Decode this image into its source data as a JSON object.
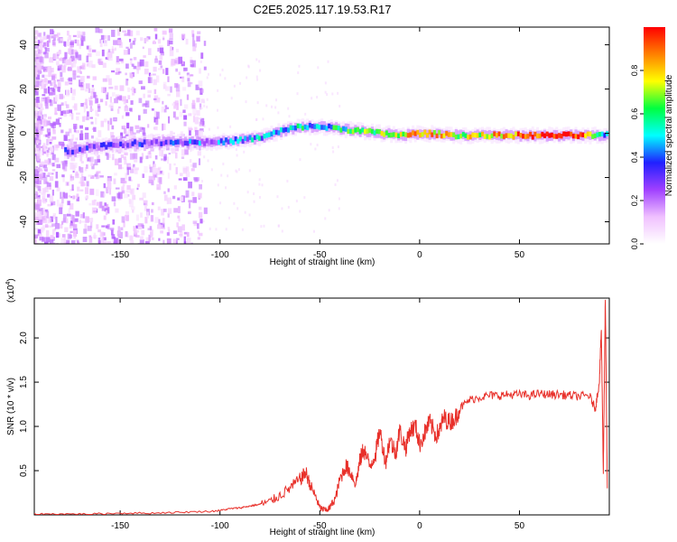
{
  "figure": {
    "title": "C2E5.2025.117.19.53.R17"
  },
  "chart_data": [
    {
      "type": "heatmap",
      "xlabel": "Height of straight line (km)",
      "ylabel": "Frequency (Hz)",
      "xlim": [
        -193,
        95
      ],
      "ylim": [
        -50,
        48
      ],
      "xticks": [
        "-150",
        "-100",
        "-50",
        "0",
        "50"
      ],
      "xtick_values": [
        -150,
        -100,
        -50,
        0,
        50
      ],
      "yticks": [
        "-40",
        "-20",
        "0",
        "20",
        "40"
      ],
      "ytick_values": [
        -40,
        -20,
        0,
        20,
        40
      ],
      "grid": false,
      "ridge": {
        "x": [
          -175,
          -165,
          -150,
          -130,
          -115,
          -100,
          -90,
          -80,
          -70,
          -60,
          -50,
          -40,
          -30,
          -20,
          -10,
          0,
          20,
          50,
          80,
          93
        ],
        "frequency": [
          -8,
          -6,
          -5,
          -4,
          -4,
          -4,
          -3,
          -2,
          1,
          3,
          3,
          2,
          1,
          0,
          -1,
          0,
          -1,
          -1,
          -1,
          -1
        ],
        "normalized_amplitude": [
          0.25,
          0.3,
          0.25,
          0.3,
          0.35,
          0.35,
          0.4,
          0.45,
          0.45,
          0.5,
          0.45,
          0.55,
          0.6,
          0.7,
          0.75,
          0.85,
          0.7,
          0.9,
          1.0,
          0.4
        ]
      },
      "colorbar": {
        "label": "Normalized spectral amplitude",
        "range": [
          0,
          1
        ],
        "ticks": [
          "0.0",
          "0.2",
          "0.4",
          "0.6",
          "0.8"
        ],
        "tick_values": [
          0,
          0.2,
          0.4,
          0.6,
          0.8
        ],
        "colormap": [
          "#ffffff",
          "#f0c0ff",
          "#a040ff",
          "#2020ff",
          "#00ffff",
          "#00ff40",
          "#ffff00",
          "#ff8000",
          "#ff0000"
        ]
      }
    },
    {
      "type": "line",
      "xlabel": "Height of straight line (km)",
      "ylabel": "SNR (10 * v/v)",
      "y_multiplier": "(x10",
      "y_multiplier_exp": "4",
      "y_multiplier_close": ")",
      "xlim": [
        -193,
        95
      ],
      "ylim": [
        0,
        2.45
      ],
      "xticks": [
        "-150",
        "-100",
        "-50",
        "0",
        "50"
      ],
      "xtick_values": [
        -150,
        -100,
        -50,
        0,
        50
      ],
      "yticks": [
        "0.5",
        "1.0",
        "1.5",
        "2.0"
      ],
      "ytick_values": [
        0.5,
        1.0,
        1.5,
        2.0
      ],
      "color": "#e8302a",
      "grid": false,
      "series": [
        {
          "x": [
            -193,
            -180,
            -165,
            -150,
            -135,
            -120,
            -105,
            -100,
            -95,
            -90,
            -85,
            -80,
            -75,
            -70,
            -65,
            -60,
            -57,
            -55,
            -52,
            -50,
            -47,
            -45,
            -42,
            -40,
            -37,
            -35,
            -32,
            -30,
            -28,
            -25,
            -22,
            -20,
            -17,
            -15,
            -12,
            -10,
            -7,
            -5,
            -2,
            0,
            3,
            5,
            8,
            10,
            12,
            15,
            18,
            20,
            25,
            30,
            35,
            40,
            45,
            50,
            55,
            60,
            65,
            70,
            75,
            80,
            85,
            88,
            90,
            91,
            92,
            93,
            94
          ],
          "y": [
            0.01,
            0.01,
            0.01,
            0.02,
            0.02,
            0.03,
            0.04,
            0.05,
            0.07,
            0.08,
            0.1,
            0.12,
            0.15,
            0.22,
            0.3,
            0.4,
            0.48,
            0.35,
            0.2,
            0.08,
            0.05,
            0.08,
            0.2,
            0.4,
            0.55,
            0.5,
            0.35,
            0.6,
            0.75,
            0.55,
            0.7,
            0.95,
            0.6,
            0.85,
            0.7,
            0.95,
            0.75,
            0.95,
            1.0,
            0.8,
            0.95,
            1.05,
            0.9,
            0.95,
            1.1,
            1.05,
            1.1,
            1.2,
            1.3,
            1.33,
            1.35,
            1.35,
            1.36,
            1.36,
            1.35,
            1.37,
            1.36,
            1.36,
            1.35,
            1.34,
            1.35,
            1.2,
            1.5,
            2.1,
            0.5,
            2.45,
            0.3
          ]
        }
      ]
    }
  ]
}
